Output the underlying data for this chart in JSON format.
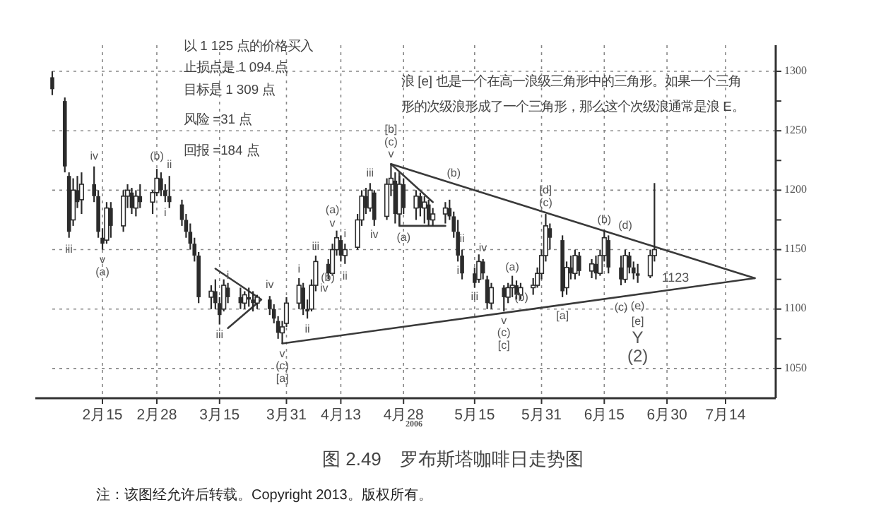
{
  "chart_data": {
    "type": "candlestick",
    "title": "图 2.49　罗布斯塔咖啡日走势图",
    "xlabel": "2006",
    "grid": true,
    "xlim": [
      "2006-02-03",
      "2006-07-26"
    ],
    "ylim": [
      1025,
      1322
    ],
    "xticks": [
      {
        "value": "2006-02-15",
        "label": "2月15"
      },
      {
        "value": "2006-02-28",
        "label": "2月28"
      },
      {
        "value": "2006-03-15",
        "label": "3月15"
      },
      {
        "value": "2006-03-31",
        "label": "3月31"
      },
      {
        "value": "2006-04-13",
        "label": "4月13"
      },
      {
        "value": "2006-04-28",
        "label": "4月28"
      },
      {
        "value": "2006-05-15",
        "label": "5月15"
      },
      {
        "value": "2006-05-31",
        "label": "5月31"
      },
      {
        "value": "2006-06-15",
        "label": "6月15"
      },
      {
        "value": "2006-06-30",
        "label": "6月30"
      },
      {
        "value": "2006-07-14",
        "label": "7月14"
      }
    ],
    "yticks": [
      1050,
      {
        "value": 1075,
        "label": null
      },
      1100,
      {
        "value": 1125,
        "label": null
      },
      1150,
      {
        "value": 1175,
        "label": null
      },
      1200,
      {
        "value": 1225,
        "label": null
      },
      1250,
      {
        "value": 1275,
        "label": null
      },
      1300
    ],
    "x": [
      "2006-02-03",
      "2006-02-06",
      "2006-02-07",
      "2006-02-08",
      "2006-02-09",
      "2006-02-10",
      "2006-02-13",
      "2006-02-14",
      "2006-02-15",
      "2006-02-16",
      "2006-02-17",
      "2006-02-20",
      "2006-02-21",
      "2006-02-22",
      "2006-02-23",
      "2006-02-24",
      "2006-02-27",
      "2006-02-28",
      "2006-03-01",
      "2006-03-02",
      "2006-03-03",
      "2006-03-06",
      "2006-03-07",
      "2006-03-08",
      "2006-03-09",
      "2006-03-10",
      "2006-03-13",
      "2006-03-14",
      "2006-03-15",
      "2006-03-16",
      "2006-03-17",
      "2006-03-20",
      "2006-03-21",
      "2006-03-22",
      "2006-03-23",
      "2006-03-24",
      "2006-03-27",
      "2006-03-28",
      "2006-03-29",
      "2006-03-30",
      "2006-03-31",
      "2006-04-03",
      "2006-04-04",
      "2006-04-05",
      "2006-04-06",
      "2006-04-07",
      "2006-04-10",
      "2006-04-11",
      "2006-04-12",
      "2006-04-13",
      "2006-04-14",
      "2006-04-17",
      "2006-04-18",
      "2006-04-19",
      "2006-04-20",
      "2006-04-21",
      "2006-04-24",
      "2006-04-25",
      "2006-04-26",
      "2006-04-27",
      "2006-04-28",
      "2006-05-01",
      "2006-05-02",
      "2006-05-03",
      "2006-05-04",
      "2006-05-05",
      "2006-05-08",
      "2006-05-09",
      "2006-05-10",
      "2006-05-11",
      "2006-05-12",
      "2006-05-15",
      "2006-05-16",
      "2006-05-17",
      "2006-05-18",
      "2006-05-19",
      "2006-05-22",
      "2006-05-23",
      "2006-05-24",
      "2006-05-25",
      "2006-05-26",
      "2006-05-29",
      "2006-05-30",
      "2006-05-31",
      "2006-06-01",
      "2006-06-02",
      "2006-06-05",
      "2006-06-06",
      "2006-06-07",
      "2006-06-08",
      "2006-06-09",
      "2006-06-12",
      "2006-06-13",
      "2006-06-14",
      "2006-06-15",
      "2006-06-16",
      "2006-06-19",
      "2006-06-20",
      "2006-06-21",
      "2006-06-22",
      "2006-06-23",
      "2006-06-26",
      "2006-06-27"
    ],
    "ohlc": [
      [
        1295,
        1300,
        1280,
        1285
      ],
      [
        1275,
        1278,
        1215,
        1220
      ],
      [
        1212,
        1215,
        1160,
        1165
      ],
      [
        1175,
        1210,
        1170,
        1200
      ],
      [
        1200,
        1212,
        1185,
        1190
      ],
      [
        1192,
        1215,
        1180,
        1205
      ],
      [
        1205,
        1220,
        1190,
        1195
      ],
      [
        1195,
        1200,
        1160,
        1165
      ],
      [
        1160,
        1168,
        1150,
        1155
      ],
      [
        1158,
        1190,
        1155,
        1185
      ],
      [
        1185,
        1190,
        1160,
        1170
      ],
      [
        1170,
        1200,
        1165,
        1195
      ],
      [
        1195,
        1205,
        1185,
        1200
      ],
      [
        1198,
        1202,
        1180,
        1185
      ],
      [
        1185,
        1200,
        1178,
        1195
      ],
      [
        1195,
        1205,
        1185,
        1190
      ],
      [
        1190,
        1200,
        1180,
        1198
      ],
      [
        1198,
        1218,
        1195,
        1210
      ],
      [
        1210,
        1215,
        1195,
        1200
      ],
      [
        1200,
        1205,
        1190,
        1195
      ],
      [
        1195,
        1212,
        1185,
        1190
      ],
      [
        1188,
        1192,
        1170,
        1175
      ],
      [
        1175,
        1180,
        1160,
        1165
      ],
      [
        1165,
        1172,
        1150,
        1155
      ],
      [
        1155,
        1160,
        1140,
        1145
      ],
      [
        1145,
        1148,
        1105,
        1110
      ],
      [
        1110,
        1120,
        1100,
        1115
      ],
      [
        1115,
        1125,
        1100,
        1105
      ],
      [
        1105,
        1110,
        1087,
        1095
      ],
      [
        1100,
        1125,
        1098,
        1120
      ],
      [
        1118,
        1122,
        1105,
        1110
      ],
      [
        1110,
        1118,
        1100,
        1105
      ],
      [
        1105,
        1115,
        1100,
        1112
      ],
      [
        1110,
        1118,
        1102,
        1108
      ],
      [
        1108,
        1115,
        1098,
        1105
      ],
      [
        1105,
        1112,
        1100,
        1110
      ],
      [
        1108,
        1111,
        1095,
        1100
      ],
      [
        1100,
        1104,
        1088,
        1092
      ],
      [
        1090,
        1094,
        1075,
        1080
      ],
      [
        1080,
        1090,
        1071,
        1085
      ],
      [
        1088,
        1110,
        1085,
        1105
      ],
      [
        1105,
        1126,
        1100,
        1120
      ],
      [
        1118,
        1122,
        1095,
        1100
      ],
      [
        1100,
        1108,
        1092,
        1098
      ],
      [
        1100,
        1125,
        1098,
        1120
      ],
      [
        1120,
        1145,
        1115,
        1140
      ],
      [
        1138,
        1142,
        1125,
        1130
      ],
      [
        1130,
        1155,
        1128,
        1150
      ],
      [
        1150,
        1166,
        1145,
        1160
      ],
      [
        1158,
        1162,
        1140,
        1145
      ],
      [
        1145,
        1155,
        1138,
        1150
      ],
      [
        1152,
        1180,
        1150,
        1175
      ],
      [
        1175,
        1200,
        1170,
        1195
      ],
      [
        1195,
        1202,
        1180,
        1185
      ],
      [
        1185,
        1206,
        1182,
        1200
      ],
      [
        1198,
        1200,
        1170,
        1175
      ],
      [
        1178,
        1210,
        1175,
        1205
      ],
      [
        1205,
        1222,
        1195,
        1210
      ],
      [
        1208,
        1215,
        1172,
        1180
      ],
      [
        1180,
        1212,
        1170,
        1205
      ],
      [
        1205,
        1210,
        1180,
        1185
      ],
      [
        1185,
        1200,
        1175,
        1195
      ],
      [
        1195,
        1198,
        1178,
        1185
      ],
      [
        1185,
        1195,
        1172,
        1190
      ],
      [
        1188,
        1192,
        1170,
        1175
      ],
      [
        1175,
        1185,
        1170,
        1180
      ],
      [
        1180,
        1190,
        1172,
        1185
      ],
      [
        1185,
        1192,
        1175,
        1178
      ],
      [
        1178,
        1182,
        1160,
        1165
      ],
      [
        1165,
        1175,
        1140,
        1145
      ],
      [
        1145,
        1150,
        1125,
        1130
      ],
      [
        1130,
        1135,
        1118,
        1122
      ],
      [
        1125,
        1146,
        1122,
        1140
      ],
      [
        1140,
        1142,
        1125,
        1130
      ],
      [
        1125,
        1128,
        1100,
        1105
      ],
      [
        1105,
        1122,
        1100,
        1118
      ],
      [
        1118,
        1120,
        1098,
        1110
      ],
      [
        1110,
        1122,
        1105,
        1118
      ],
      [
        1118,
        1128,
        1110,
        1120
      ],
      [
        1120,
        1124,
        1108,
        1112
      ],
      [
        1112,
        1122,
        1108,
        1118
      ],
      [
        1118,
        1126,
        1112,
        1120
      ],
      [
        1120,
        1135,
        1118,
        1130
      ],
      [
        1130,
        1150,
        1125,
        1145
      ],
      [
        1145,
        1180,
        1140,
        1170
      ],
      [
        1168,
        1172,
        1150,
        1160
      ],
      [
        1158,
        1162,
        1110,
        1115
      ],
      [
        1118,
        1140,
        1112,
        1135
      ],
      [
        1135,
        1145,
        1125,
        1130
      ],
      [
        1130,
        1150,
        1125,
        1145
      ],
      [
        1145,
        1148,
        1128,
        1132
      ],
      [
        1132,
        1142,
        1126,
        1138
      ],
      [
        1138,
        1145,
        1125,
        1130
      ],
      [
        1130,
        1150,
        1128,
        1145
      ],
      [
        1145,
        1166,
        1140,
        1160
      ],
      [
        1158,
        1162,
        1130,
        1135
      ],
      [
        1135,
        1145,
        1120,
        1125
      ],
      [
        1125,
        1150,
        1122,
        1145
      ],
      [
        1145,
        1148,
        1130,
        1135
      ],
      [
        1135,
        1140,
        1125,
        1130
      ],
      [
        1130,
        1138,
        1122,
        1128
      ],
      [
        1128,
        1150,
        1126,
        1145
      ],
      [
        1145,
        1206,
        1140,
        1150
      ]
    ],
    "series": [
      {
        "type": "line",
        "color": "#3a3a3a",
        "x": [
          "2006-04-25",
          "2006-07-21"
        ],
        "values": [
          1222,
          1126
        ]
      },
      {
        "type": "line",
        "color": "#3a3a3a",
        "x": [
          "2006-03-30",
          "2006-07-21"
        ],
        "values": [
          1071,
          1126
        ]
      },
      {
        "type": "line",
        "color": "#3a3a3a",
        "x": [
          "2006-03-14",
          "2006-03-25",
          "2006-03-17"
        ],
        "values": [
          1134,
          1108,
          1084
        ]
      },
      {
        "type": "line",
        "color": "#3a3a3a",
        "x": [
          "2006-04-25",
          "2006-05-05"
        ],
        "values": [
          1222,
          1190
        ]
      },
      {
        "type": "line",
        "color": "#3a3a3a",
        "x": [
          "2006-04-27",
          "2006-04-27",
          "2006-05-08"
        ],
        "values": [
          1215,
          1170,
          1170
        ]
      }
    ],
    "annotations": [
      "以 1 125 点的价格买入",
      "止损点是 1 094 点",
      "目标是 1 309 点",
      "风险 =31 点",
      "回报 =184 点",
      "浪 [e] 也是一个在高一浪级三角形中的三角形。如果一个三角",
      "形的次级浪形成了一个三角形，那么这个次级浪通常是浪 E。",
      "注：该图经允许后转载。Copyright 2013。版权所有。",
      "iii",
      "iv",
      "v",
      "(a)",
      "(b)",
      "ii",
      "i",
      "iii",
      "i",
      "iv",
      "v",
      "(c)",
      "[a]",
      "i",
      "ii",
      "iii",
      "iv",
      "v",
      "(a)",
      "(b)",
      "i",
      "ii",
      "iii",
      "iv",
      "v",
      "(c)",
      "[b]",
      "(a)",
      "(b)",
      "i",
      "ii",
      "iii",
      "iv",
      "v",
      "(c)",
      "[c]",
      "(a)",
      "(b)",
      "[d]",
      "(c)",
      "[a]",
      "(b)",
      "(c)",
      "(d)",
      "(e)",
      "[e]",
      "Y",
      "(2)",
      "1123"
    ]
  }
}
